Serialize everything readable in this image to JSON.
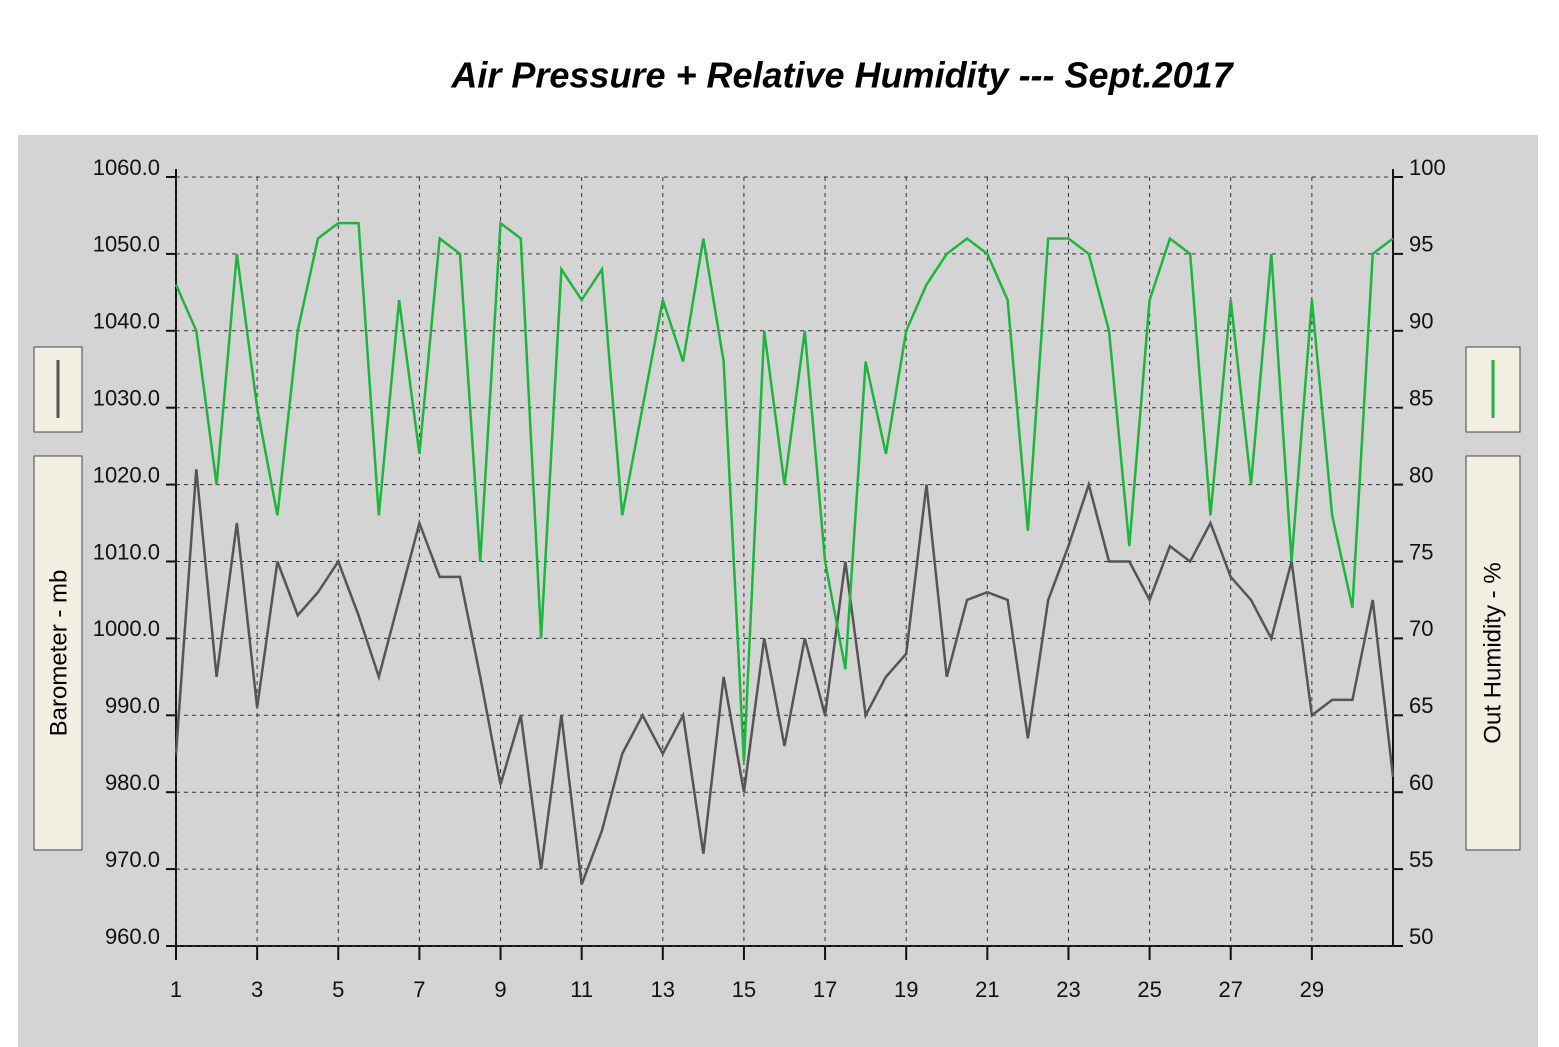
{
  "chart_data": {
    "type": "line",
    "title": "Air Pressure + Relative Humidity --- Sept.2017",
    "y_label": "Barometer - mb",
    "y2_label": "Out Humidity - %",
    "x": [
      1,
      1.5,
      2,
      2.5,
      3,
      3.5,
      4,
      4.5,
      5,
      5.5,
      6,
      6.5,
      7,
      7.5,
      8,
      8.5,
      9,
      9.5,
      10,
      10.5,
      11,
      11.5,
      12,
      12.5,
      13,
      13.5,
      14,
      14.5,
      15,
      15.5,
      16,
      16.5,
      17,
      17.5,
      18,
      18.5,
      19,
      19.5,
      20,
      20.5,
      21,
      21.5,
      22,
      22.5,
      23,
      23.5,
      24,
      24.5,
      25,
      25.5,
      26,
      26.5,
      27,
      27.5,
      28,
      28.5,
      29,
      29.5,
      30,
      30.5,
      31
    ],
    "series": [
      {
        "color": "#555555",
        "axis": "y",
        "values": [
          985,
          1022,
          995,
          1015,
          991,
          1010,
          1003,
          1006,
          1010,
          1003,
          995,
          1005,
          1015,
          1008,
          1008,
          995,
          981,
          990,
          970,
          990,
          968,
          975,
          985,
          990,
          985,
          990,
          972,
          995,
          980,
          1000,
          986,
          1000,
          990,
          1010,
          990,
          995,
          998,
          1020,
          995,
          1005,
          1006,
          1005,
          987,
          1005,
          1012,
          1020,
          1010,
          1010,
          1005,
          1012,
          1010,
          1015,
          1008,
          1005,
          1000,
          1010,
          990,
          992,
          992,
          1005,
          982
        ]
      },
      {
        "color": "#1db63c",
        "axis": "y2",
        "values": [
          93,
          90,
          80,
          95,
          85,
          78,
          90,
          96,
          97,
          97,
          78,
          92,
          82,
          96,
          95,
          75,
          97,
          96,
          70,
          94,
          92,
          94,
          78,
          85,
          92,
          88,
          96,
          88,
          62,
          90,
          80,
          90,
          75,
          68,
          88,
          82,
          90,
          93,
          95,
          96,
          95,
          92,
          77,
          96,
          96,
          95,
          90,
          76,
          92,
          96,
          95,
          78,
          92,
          80,
          95,
          75,
          92,
          78,
          72,
          95,
          96
        ]
      }
    ],
    "xlim": [
      1,
      31
    ],
    "xticks": [
      1,
      3,
      5,
      7,
      9,
      11,
      13,
      15,
      17,
      19,
      21,
      23,
      25,
      27,
      29
    ],
    "ylim": [
      960,
      1060
    ],
    "yticks": [
      {
        "value": 960,
        "label": "960.0"
      },
      {
        "value": 970,
        "label": "970.0"
      },
      {
        "value": 980,
        "label": "980.0"
      },
      {
        "value": 990,
        "label": "990.0"
      },
      {
        "value": 1000,
        "label": "1000.0"
      },
      {
        "value": 1010,
        "label": "1010.0"
      },
      {
        "value": 1020,
        "label": "1020.0"
      },
      {
        "value": 1030,
        "label": "1030.0"
      },
      {
        "value": 1040,
        "label": "1040.0"
      },
      {
        "value": 1050,
        "label": "1050.0"
      },
      {
        "value": 1060,
        "label": "1060.0"
      }
    ],
    "y2lim": [
      50,
      100
    ],
    "y2ticks": [
      50,
      55,
      60,
      65,
      70,
      75,
      80,
      85,
      90,
      95,
      100
    ],
    "grid": true
  }
}
